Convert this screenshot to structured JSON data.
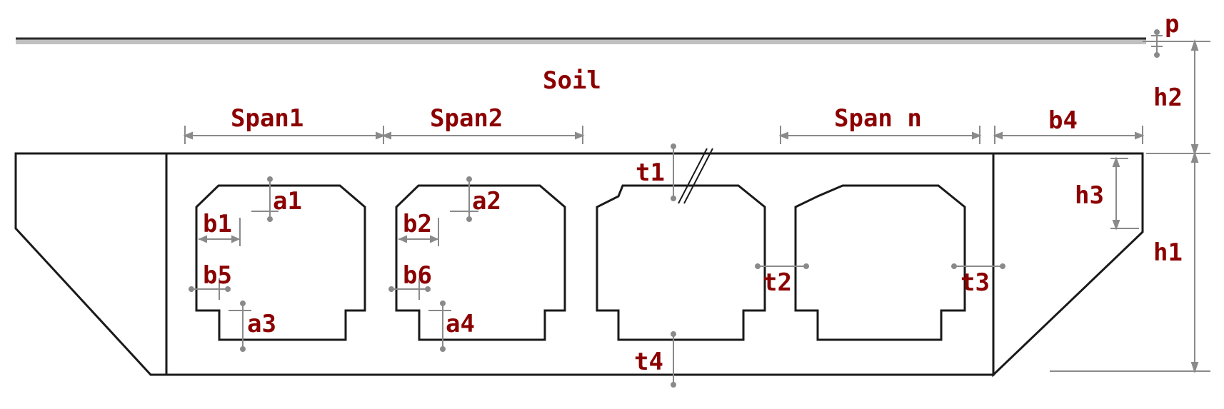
{
  "diagram": {
    "labels": {
      "p": "p",
      "soil": "Soil",
      "span1": "Span1",
      "span2": "Span2",
      "span_n": "Span n",
      "b4": "b4",
      "h2": "h2",
      "h1": "h1",
      "h3": "h3",
      "t1": "t1",
      "t2": "t2",
      "t3": "t3",
      "t4": "t4",
      "a1": "a1",
      "a2": "a2",
      "a3": "a3",
      "a4": "a4",
      "b1": "b1",
      "b2": "b2",
      "b5": "b5",
      "b6": "b6"
    },
    "colors": {
      "label": "#8b0000",
      "structure": "#1a1a1a",
      "dimension": "#8a8a8a",
      "ground": "#b5b5b5"
    }
  }
}
